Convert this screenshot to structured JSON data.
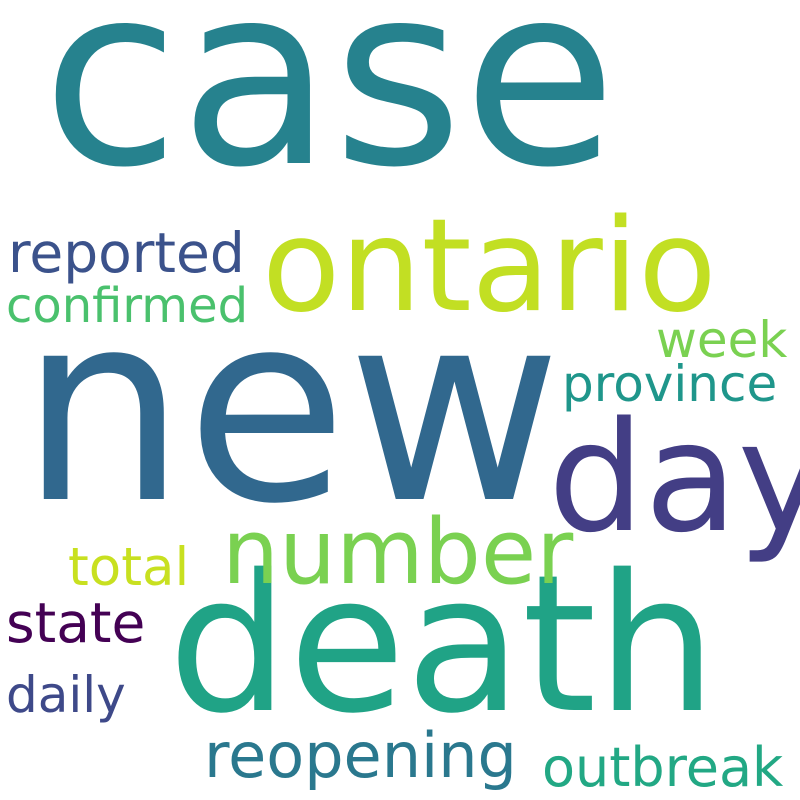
{
  "words": {
    "case": {
      "text": "case",
      "color": "#26828e"
    },
    "new": {
      "text": "new",
      "color": "#31688e"
    },
    "death": {
      "text": "death",
      "color": "#20a386"
    },
    "ontario": {
      "text": "ontario",
      "color": "#c2df23"
    },
    "day": {
      "text": "day",
      "color": "#433e85"
    },
    "number": {
      "text": "number",
      "color": "#7ad151"
    },
    "reopening": {
      "text": "reopening",
      "color": "#2a788e"
    },
    "outbreak": {
      "text": "outbreak",
      "color": "#22a884"
    },
    "province": {
      "text": "province",
      "color": "#1f968b"
    },
    "reported": {
      "text": "reported",
      "color": "#3b528b"
    },
    "confirmed": {
      "text": "confirmed",
      "color": "#4ac16d"
    },
    "week": {
      "text": "week",
      "color": "#7ad151"
    },
    "total": {
      "text": "total",
      "color": "#c8e020"
    },
    "state": {
      "text": "state",
      "color": "#440154"
    },
    "daily": {
      "text": "daily",
      "color": "#3e4989"
    }
  }
}
